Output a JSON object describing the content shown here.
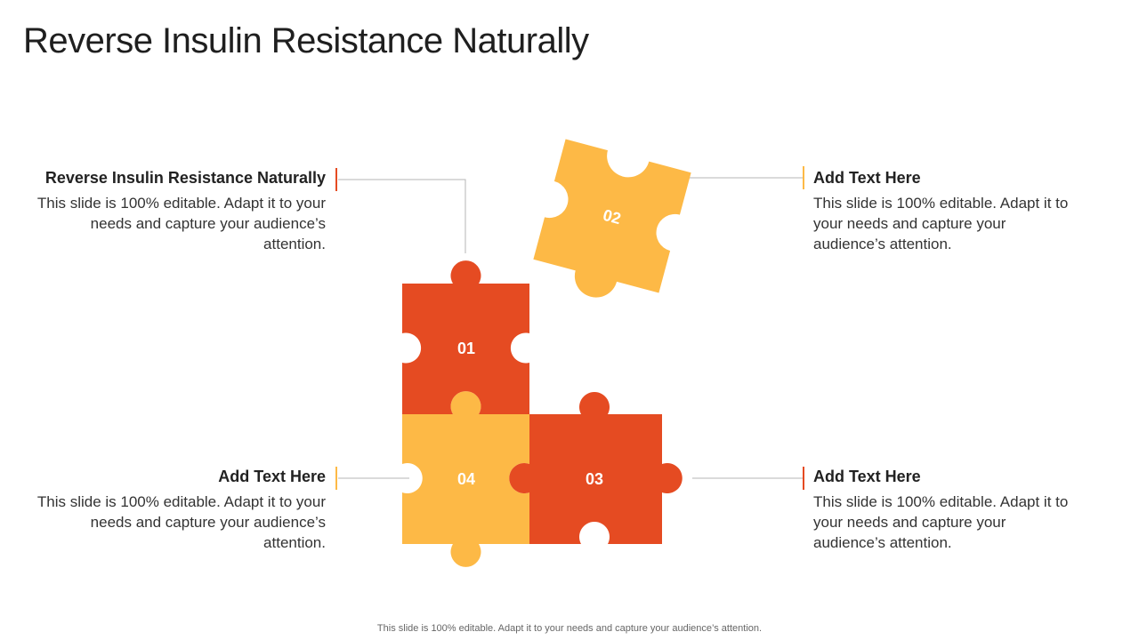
{
  "slide": {
    "title": "Reverse Insulin Resistance Naturally",
    "footer": "This slide is 100% editable. Adapt it to your needs and capture your audience’s attention."
  },
  "colors": {
    "orange_red": "#E54B22",
    "yellow": "#FDB946",
    "connector": "#B5B5B5"
  },
  "pieces": [
    {
      "label": "01",
      "color": "orange_red"
    },
    {
      "label": "02",
      "color": "yellow"
    },
    {
      "label": "03",
      "color": "orange_red"
    },
    {
      "label": "04",
      "color": "yellow"
    }
  ],
  "blocks": {
    "top_left": {
      "heading": "Reverse Insulin Resistance Naturally",
      "body": "This slide is 100% editable. Adapt it to your needs and capture your audience’s attention."
    },
    "top_right": {
      "heading": "Add Text Here",
      "body": "This slide is 100% editable. Adapt it to your needs and capture your audience’s attention."
    },
    "bottom_left": {
      "heading": "Add Text Here",
      "body": "This slide is 100% editable. Adapt it to your needs and capture your audience’s attention."
    },
    "bottom_right": {
      "heading": "Add Text Here",
      "body": "This slide is 100% editable. Adapt it to your needs and capture your audience’s attention."
    }
  }
}
